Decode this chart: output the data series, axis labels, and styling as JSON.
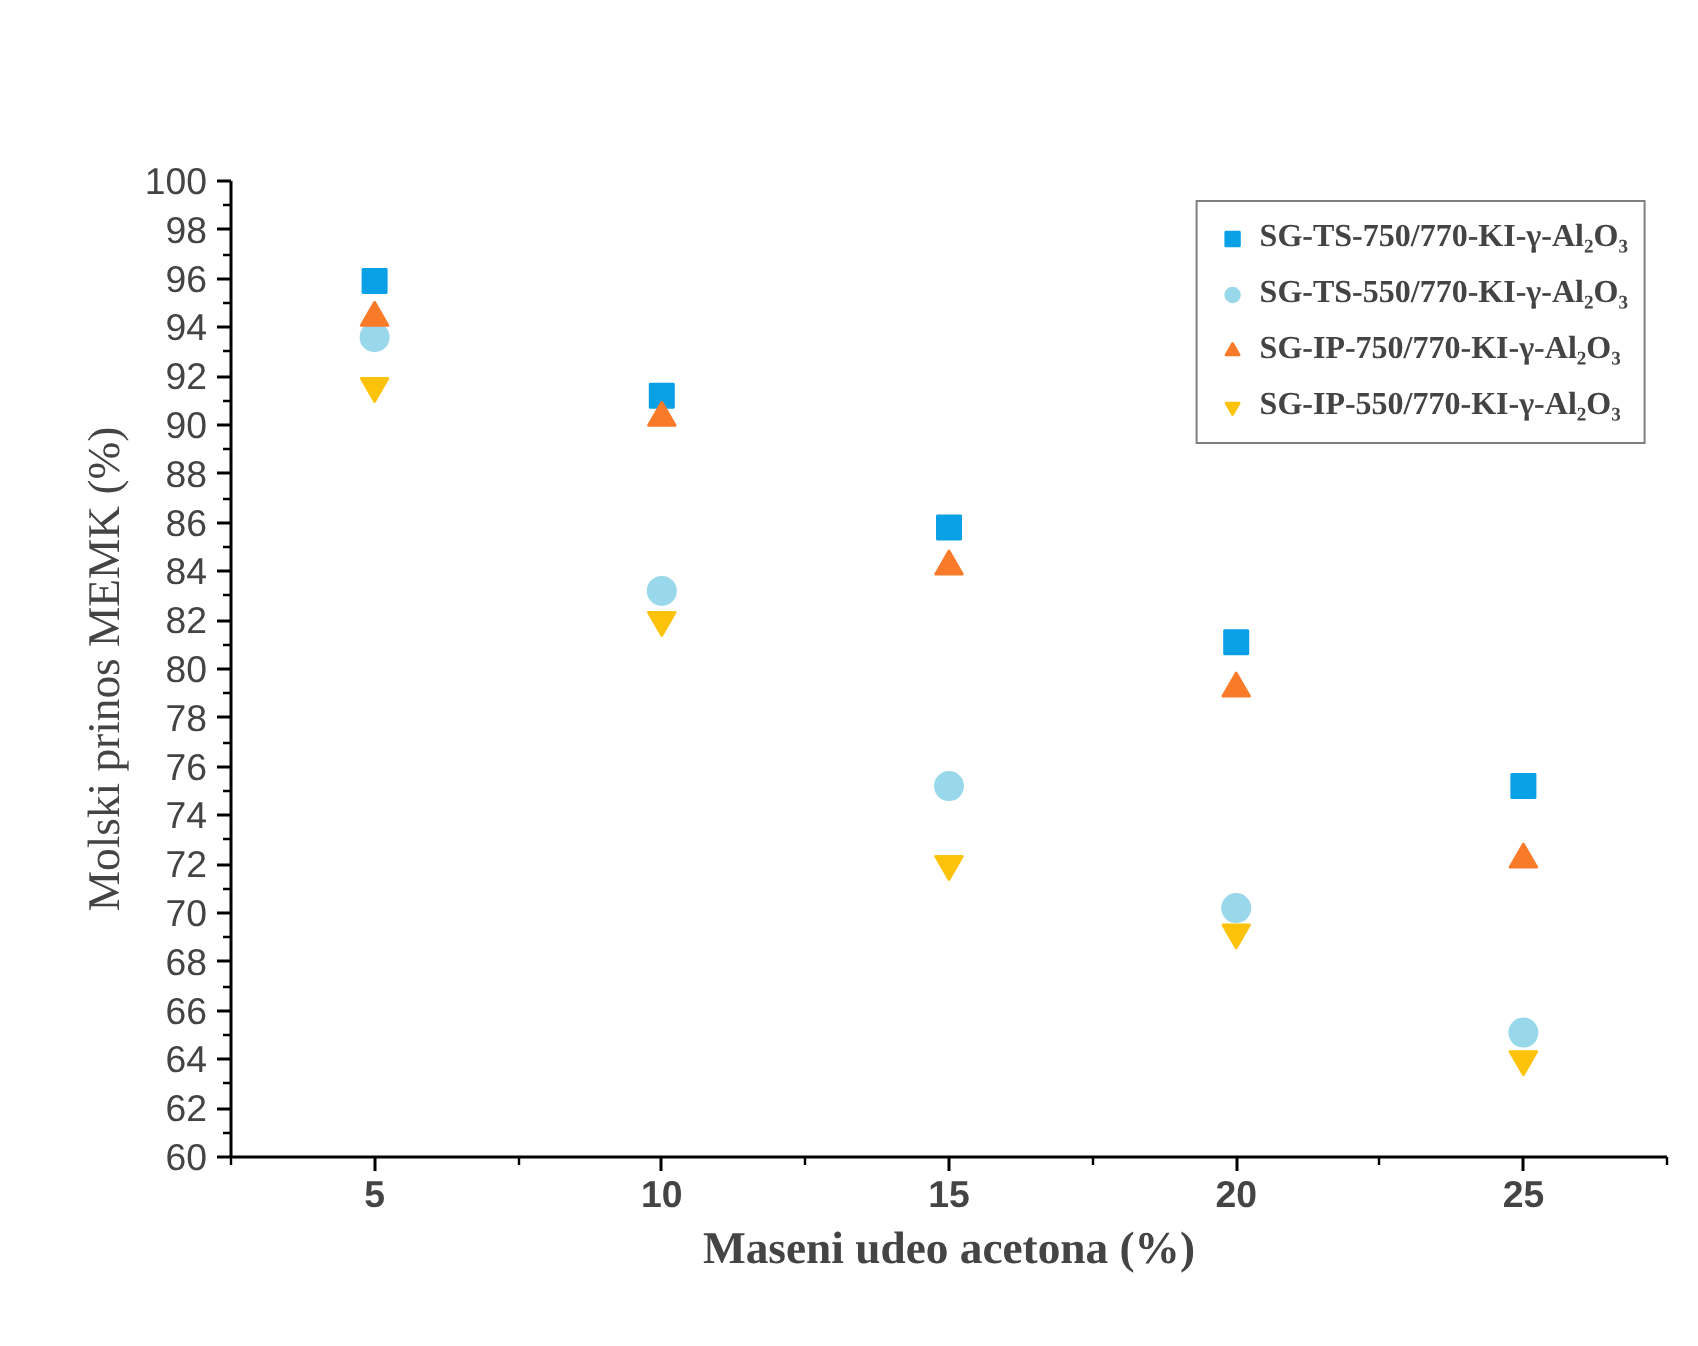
{
  "chart_data": {
    "type": "scatter",
    "xlabel": "Maseni udeo acetona (%)",
    "ylabel": "Molski prinos MEMK (%)",
    "x": [
      5,
      10,
      15,
      20,
      25
    ],
    "series": [
      {
        "name": "SG-TS-750/770-KI-γ-Al₂O₃",
        "color": "#0aa0e6",
        "marker": "square",
        "values": [
          95.9,
          91.2,
          85.8,
          81.1,
          75.2
        ]
      },
      {
        "name": "SG-TS-550/770-KI-γ-Al₂O₃",
        "color": "#98d8ea",
        "marker": "circle",
        "values": [
          93.6,
          83.2,
          75.2,
          70.2,
          65.1
        ]
      },
      {
        "name": "SG-IP-750/770-KI-γ-Al₂O₃",
        "color": "#f97b2a",
        "marker": "triangle",
        "values": [
          94.4,
          90.3,
          84.2,
          79.2,
          72.2
        ]
      },
      {
        "name": "SG-IP-550/770-KI-γ-Al₂O₃",
        "color": "#fdc20a",
        "marker": "triangle",
        "values": [
          91.6,
          82.0,
          72.0,
          69.2,
          64.0
        ]
      }
    ],
    "xlim": [
      2.5,
      27.5
    ],
    "xticks": [
      5,
      10,
      15,
      20,
      25
    ],
    "ylim": [
      60,
      100
    ],
    "yticks": [
      60,
      62,
      64,
      66,
      68,
      70,
      72,
      74,
      76,
      78,
      80,
      82,
      84,
      86,
      88,
      90,
      92,
      94,
      96,
      98,
      100
    ],
    "grid": false,
    "legend": "top right"
  }
}
